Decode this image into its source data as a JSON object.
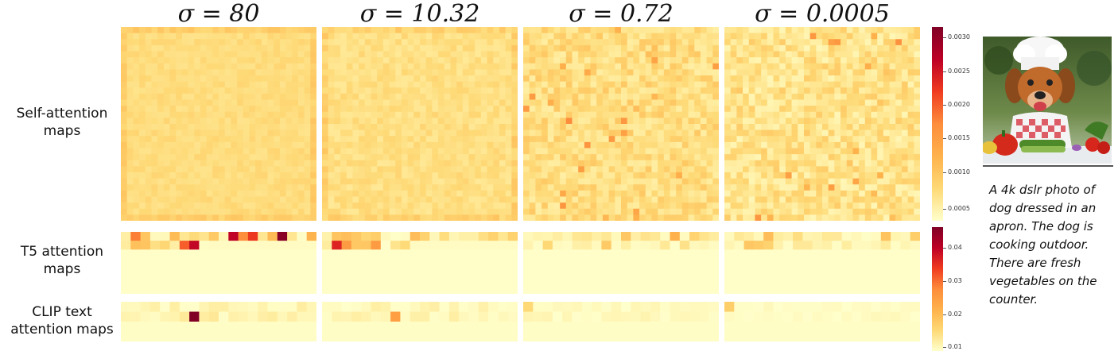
{
  "columns": [
    {
      "title": "σ = 80"
    },
    {
      "title": "σ = 10.32"
    },
    {
      "title": "σ = 0.72"
    },
    {
      "title": "σ = 0.0005"
    }
  ],
  "row_labels": {
    "self_attention": "Self-attention maps",
    "t5": "T5 attention maps",
    "clip": "CLIP text attention maps"
  },
  "colorbar_self": {
    "ticks": [
      "0.0030",
      "0.0025",
      "0.0020",
      "0.0015",
      "0.0010",
      "0.0005"
    ]
  },
  "colorbar_text": {
    "ticks": [
      "0.04",
      "0.03",
      "0.02",
      "0.01"
    ]
  },
  "caption": "A 4k dslr photo of dog dressed in an apron. The dog is cooking outdoor. There are fresh vegetables on the counter.",
  "colors": {
    "low": "#fff7c4",
    "mid": "#fdae61",
    "high": "#e3251c",
    "max": "#8b0024"
  },
  "image_icon": "chef-dog-photo"
}
